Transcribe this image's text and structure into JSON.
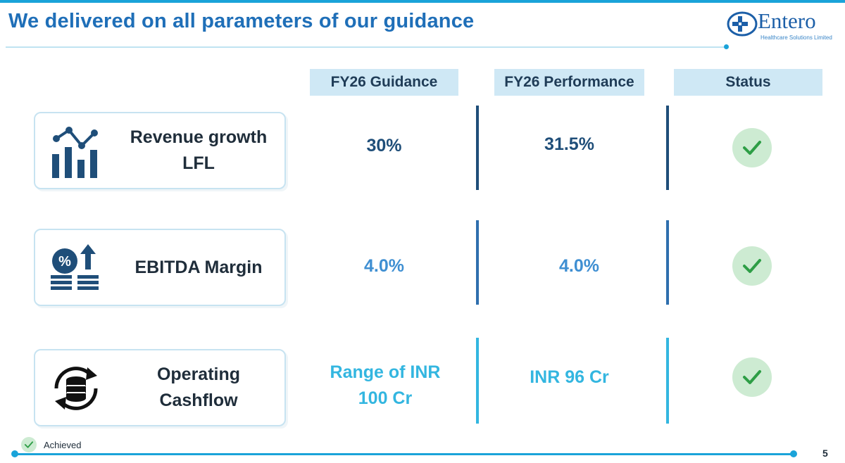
{
  "slide": {
    "title": "We delivered on all parameters of our guidance",
    "page_number": "5"
  },
  "logo": {
    "name": "Entero",
    "tagline": "Healthcare Solutions Limited"
  },
  "table": {
    "headers": [
      "FY26 Guidance",
      "FY26 Performance",
      "Status"
    ],
    "rows": [
      {
        "parameter": "Revenue growth LFL",
        "icon": "bar-line-chart-icon",
        "guidance": "30%",
        "performance": "31.5%",
        "status": "Achieved",
        "value_color": "#1f4e79"
      },
      {
        "parameter": "EBITDA Margin",
        "icon": "percent-coins-up-icon",
        "guidance": "4.0%",
        "performance": "4.0%",
        "status": "Achieved",
        "value_color": "#3f8fd2"
      },
      {
        "parameter": "Operating Cashflow",
        "icon": "cash-cycle-icon",
        "guidance": "Range of INR 100 Cr",
        "performance": "INR 96 Cr",
        "status": "Achieved",
        "value_color": "#33b6e0"
      }
    ]
  },
  "legend": {
    "label": "Achieved"
  },
  "colors": {
    "accent": "#1aa3d9",
    "title": "#1f6fb8",
    "header_bg": "#cfe8f5",
    "check_bg": "#cdebd2",
    "check": "#2e9e46"
  }
}
